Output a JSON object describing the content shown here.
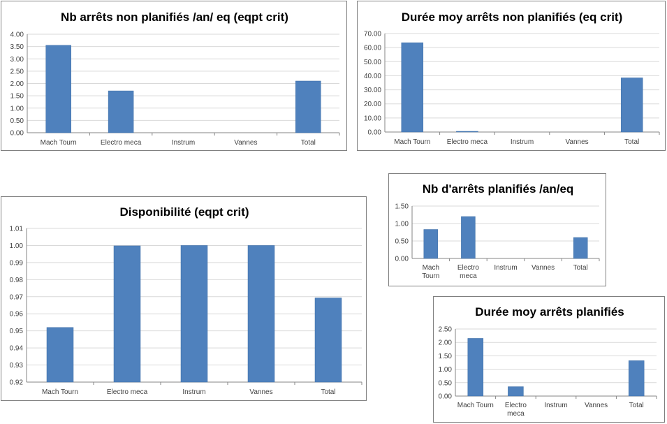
{
  "colors": {
    "bar": "#4f81bd",
    "bar_edge": "#3e6ea6",
    "grid": "#d9d9d9",
    "axis": "#868686",
    "text": "#404040"
  },
  "chart_data": [
    {
      "id": "c1",
      "type": "bar",
      "title": "Nb arrêts non planifiés /an/ eq (eqpt crit)",
      "categories": [
        [
          "Mach Tourn"
        ],
        [
          "Electro meca"
        ],
        [
          "Instrum"
        ],
        [
          "Vannes"
        ],
        [
          "Total"
        ]
      ],
      "values": [
        3.55,
        1.7,
        0,
        0,
        2.1
      ],
      "ylim": [
        0,
        4
      ],
      "yticks": [
        "0.00",
        "0.50",
        "1.00",
        "1.50",
        "2.00",
        "2.50",
        "3.00",
        "3.50",
        "4.00"
      ],
      "grid": true
    },
    {
      "id": "c2",
      "type": "bar",
      "title": "Durée moy arrêts non planifiés (eq crit)",
      "categories": [
        [
          "Mach Tourn"
        ],
        [
          "Electro meca"
        ],
        [
          "Instrum"
        ],
        [
          "Vannes"
        ],
        [
          "Total"
        ]
      ],
      "values": [
        63.5,
        0.5,
        0,
        0,
        38.5
      ],
      "ylim": [
        0,
        70
      ],
      "yticks": [
        "0.00",
        "10.00",
        "20.00",
        "30.00",
        "40.00",
        "50.00",
        "60.00",
        "70.00"
      ],
      "grid": true
    },
    {
      "id": "c3",
      "type": "bar",
      "title": "Disponibilité (eqpt crit)",
      "categories": [
        [
          "Mach Tourn"
        ],
        [
          "Electro meca"
        ],
        [
          "Instrum"
        ],
        [
          "Vannes"
        ],
        [
          "Total"
        ]
      ],
      "values": [
        0.952,
        0.9998,
        1.0,
        1.0,
        0.9693
      ],
      "ylim": [
        0.92,
        1.01
      ],
      "yticks": [
        "0.92",
        "0.93",
        "0.94",
        "0.95",
        "0.96",
        "0.97",
        "0.98",
        "0.99",
        "1.00",
        "1.01"
      ],
      "grid": true
    },
    {
      "id": "c4",
      "type": "bar",
      "title": "Nb d'arrêts planifiés /an/eq",
      "categories": [
        [
          "Mach",
          "Tourn"
        ],
        [
          "Electro",
          "meca"
        ],
        [
          "Instrum"
        ],
        [
          "Vannes"
        ],
        [
          "Total"
        ]
      ],
      "values": [
        0.83,
        1.2,
        0,
        0,
        0.6
      ],
      "ylim": [
        0,
        1.5
      ],
      "yticks": [
        "0.00",
        "0.50",
        "1.00",
        "1.50"
      ],
      "grid": true
    },
    {
      "id": "c5",
      "type": "bar",
      "title": "Durée moy arrêts planifiés",
      "categories": [
        [
          "Mach Tourn"
        ],
        [
          "Electro",
          "meca"
        ],
        [
          "Instrum"
        ],
        [
          "Vannes"
        ],
        [
          "Total"
        ]
      ],
      "values": [
        2.15,
        0.35,
        0,
        0,
        1.32
      ],
      "ylim": [
        0,
        2.5
      ],
      "yticks": [
        "0.00",
        "0.50",
        "1.00",
        "1.50",
        "2.00",
        "2.50"
      ],
      "grid": true
    }
  ]
}
